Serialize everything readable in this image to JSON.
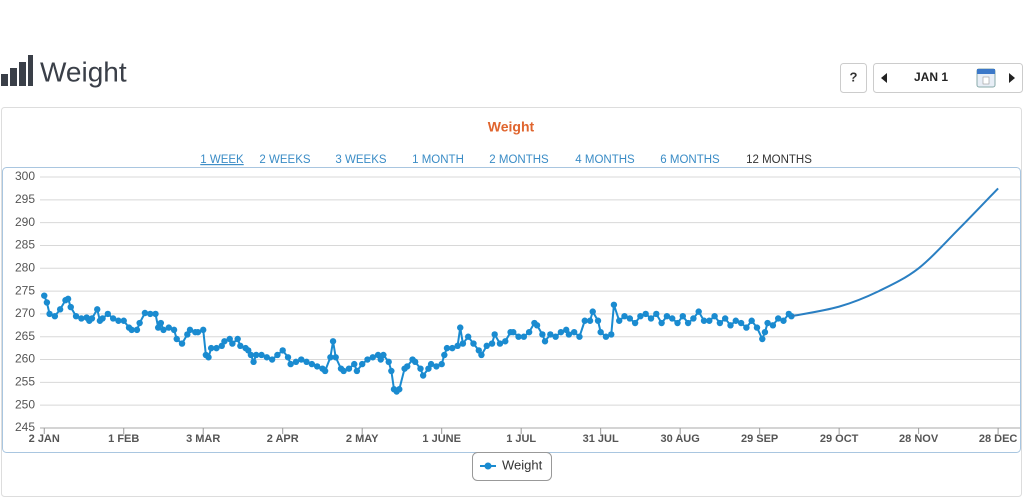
{
  "header": {
    "title": "Weight"
  },
  "nav": {
    "help": "?",
    "date": "JAN 1"
  },
  "range_options": [
    "1 WEEK",
    "2 WEEKS",
    "3 WEEKS",
    "1 MONTH",
    "2 MONTHS",
    "4 MONTHS",
    "6 MONTHS",
    "12 MONTHS"
  ],
  "chart_data": {
    "type": "line",
    "title": "Weight",
    "ylim": [
      245,
      300
    ],
    "yticks": [
      245,
      250,
      255,
      260,
      265,
      270,
      275,
      280,
      285,
      290,
      295,
      300
    ],
    "xlim": [
      -5,
      366
    ],
    "xticks": [
      {
        "value": 0,
        "label": "2 JAN"
      },
      {
        "value": 30,
        "label": "1 FEB"
      },
      {
        "value": 60,
        "label": "3 MAR"
      },
      {
        "value": 90,
        "label": "2 APR"
      },
      {
        "value": 120,
        "label": "2 MAY"
      },
      {
        "value": 150,
        "label": "1 JUNE"
      },
      {
        "value": 180,
        "label": "1 JUL"
      },
      {
        "value": 210,
        "label": "31 JUL"
      },
      {
        "value": 240,
        "label": "30 AUG"
      },
      {
        "value": 270,
        "label": "29 SEP"
      },
      {
        "value": 300,
        "label": "29 OCT"
      },
      {
        "value": 330,
        "label": "28 NOV"
      },
      {
        "value": 360,
        "label": "28 DEC"
      }
    ],
    "grid": true,
    "legend": "bottom",
    "series": [
      {
        "name": "Weight",
        "color": "#1a8bd0",
        "markers": true,
        "x": [
          0,
          1,
          2,
          4,
          6,
          8,
          9,
          10,
          12,
          14,
          16,
          17,
          18,
          20,
          21,
          22,
          24,
          26,
          28,
          30,
          32,
          33,
          35,
          36,
          38,
          40,
          42,
          43,
          44,
          45,
          47,
          49,
          50,
          52,
          54,
          55,
          57,
          58,
          60,
          61,
          62,
          63,
          65,
          67,
          68,
          70,
          71,
          73,
          74,
          76,
          77,
          78,
          79,
          80,
          82,
          84,
          86,
          88,
          90,
          92,
          93,
          95,
          97,
          99,
          101,
          103,
          105,
          106,
          108,
          109,
          110,
          112,
          113,
          115,
          117,
          118,
          120,
          122,
          124,
          126,
          127,
          128,
          130,
          131,
          132,
          133,
          134,
          136,
          137,
          139,
          140,
          142,
          143,
          145,
          146,
          148,
          150,
          151,
          152,
          154,
          156,
          157,
          158,
          160,
          162,
          164,
          165,
          167,
          169,
          170,
          172,
          174,
          176,
          177,
          179,
          181,
          183,
          185,
          186,
          188,
          189,
          191,
          193,
          195,
          197,
          198,
          200,
          202,
          204,
          206,
          207,
          209,
          210,
          212,
          214,
          215,
          217,
          219,
          221,
          223,
          225,
          227,
          229,
          231,
          233,
          235,
          237,
          239,
          241,
          243,
          245,
          247,
          249,
          251,
          253,
          255,
          257,
          259,
          261,
          263,
          265,
          267,
          269,
          271,
          272,
          273,
          275,
          277,
          279,
          281,
          282
        ],
        "values": [
          274,
          272.5,
          270,
          269.5,
          271,
          273,
          273.3,
          271.5,
          269.5,
          269,
          269.2,
          268.5,
          269,
          271,
          268.5,
          269,
          270,
          269,
          268.5,
          268.5,
          267,
          266.5,
          266.5,
          268,
          270.2,
          270,
          270,
          267,
          268,
          266.5,
          267,
          266.5,
          264.5,
          263.5,
          265.5,
          266.5,
          266,
          266,
          266.5,
          261,
          260.5,
          262.5,
          262.5,
          263,
          264,
          264.5,
          263.5,
          264.5,
          263,
          262.5,
          262,
          261,
          259.5,
          261,
          261,
          260.5,
          260,
          261,
          262,
          260.5,
          259,
          259.5,
          260,
          259.5,
          259,
          258.5,
          258,
          257.5,
          260.5,
          264,
          260.5,
          258,
          257.5,
          258,
          259,
          257.5,
          259,
          260,
          260.5,
          261,
          260,
          261,
          259.5,
          257.5,
          253.5,
          253,
          253.5,
          258,
          258.5,
          260,
          259.5,
          258,
          256.5,
          258,
          259,
          258.5,
          259,
          261,
          262.5,
          262.5,
          263,
          267,
          263.5,
          265,
          263.5,
          262,
          261,
          263,
          263.5,
          265.5,
          263.5,
          264,
          266,
          266,
          265,
          265,
          266,
          268,
          267.5,
          265.5,
          264,
          265.5,
          265,
          266,
          266.5,
          265.5,
          266,
          265,
          268.5,
          268.5,
          270.5,
          268.5,
          266,
          265,
          265.5,
          272,
          268.5,
          269.5,
          269,
          268,
          269.5,
          270,
          269,
          270,
          268,
          269.5,
          269,
          268,
          269.5,
          268,
          269,
          270.5,
          268.5,
          268.5,
          269.5,
          268,
          269,
          267.5,
          268.5,
          268,
          267,
          268.5,
          267,
          264.5,
          266,
          268,
          267.5,
          269,
          268.5,
          270,
          269.5
        ]
      },
      {
        "color": "#2a7fc2",
        "markers": false,
        "x": [
          282,
          300,
          315,
          330,
          345,
          360
        ],
        "values": [
          269.5,
          271.6,
          275,
          280,
          288.5,
          297.5
        ]
      }
    ]
  }
}
